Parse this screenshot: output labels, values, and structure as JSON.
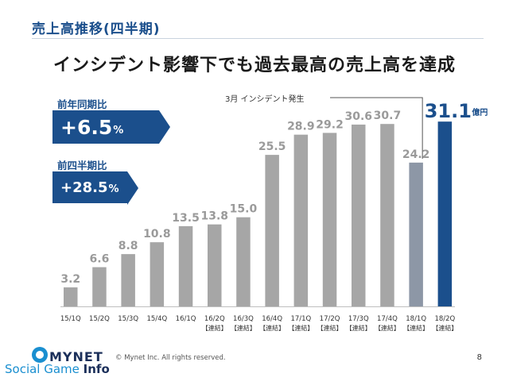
{
  "section_title": "売上高推移(四半期)",
  "headline": "インシデント影響下でも過去最高の売上高を達成",
  "yoy": {
    "label": "前年同期比",
    "value": "+6.5",
    "unit": "%"
  },
  "qoq": {
    "label": "前四半期比",
    "value": "+28.5",
    "unit": "%"
  },
  "annotation": "3月 インシデント発生",
  "unit_label": "億円",
  "footer": {
    "copyright": "© Mynet Inc. All rights reserved.",
    "page": "8"
  },
  "logo": {
    "word": "MYNET",
    "sub_a": "Social Game ",
    "sub_b": "Info"
  },
  "colors": {
    "bar": "#a6a6a6",
    "bar_incident": "#8d97a6",
    "bar_latest": "#1b4f8c",
    "accent": "#1b4f8c"
  },
  "chart_data": {
    "type": "bar",
    "categories": [
      "15/1Q",
      "15/2Q",
      "15/3Q",
      "15/4Q",
      "16/1Q",
      "16/2Q",
      "16/3Q",
      "16/4Q",
      "17/1Q",
      "17/2Q",
      "17/3Q",
      "17/4Q",
      "18/1Q",
      "18/2Q"
    ],
    "category_notes": [
      "",
      "",
      "",
      "",
      "",
      "【連結】",
      "【連結】",
      "【連結】",
      "【連結】",
      "【連結】",
      "【連結】",
      "【連結】",
      "【連結】",
      "【連結】"
    ],
    "values": [
      3.2,
      6.6,
      8.8,
      10.8,
      13.5,
      13.8,
      15.0,
      25.5,
      28.9,
      29.2,
      30.6,
      30.7,
      24.2,
      31.1
    ],
    "value_labels": [
      "3.2",
      "6.6",
      "8.8",
      "10.8",
      "13.5",
      "13.8",
      "15.0",
      "25.5",
      "28.9",
      "29.2",
      "30.6",
      "30.7",
      "24.2",
      "31.1"
    ],
    "ylim": [
      0,
      35
    ],
    "grid": false
  }
}
